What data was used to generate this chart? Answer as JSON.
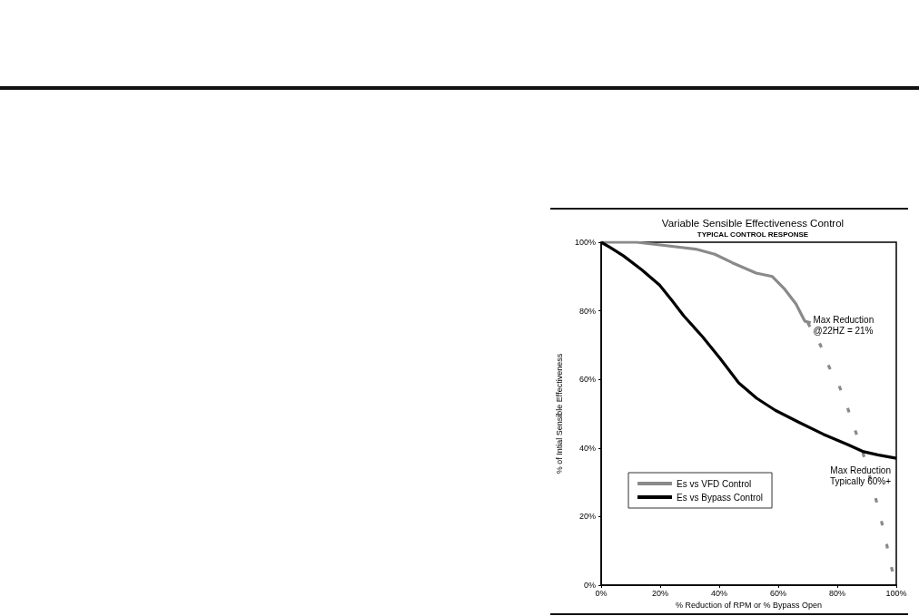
{
  "chart_data": {
    "type": "line",
    "title": "Variable Sensible Effectiveness Control",
    "subtitle": "TYPICAL CONTROL RESPONSE",
    "xlabel": "% Reduction of RPM or % Bypass Open",
    "ylabel": "% of Intial Sensible Effectiveness",
    "series": [
      {
        "name": "Es vs VFD Control",
        "color": "#8a8a8a",
        "x": [
          0,
          12,
          22,
          32,
          38.5,
          44.5,
          52.5,
          58,
          62,
          66,
          69,
          71
        ],
        "values": [
          100,
          100,
          99,
          98,
          96.5,
          94,
          91,
          90,
          86.5,
          82,
          77,
          76.5
        ]
      },
      {
        "color": "#8a8a8a",
        "line_style": "dotted",
        "x": [
          70,
          74.3,
          77.3,
          80,
          83,
          85.7,
          88.4,
          92.2,
          94.3,
          96.3,
          97.8,
          100
        ],
        "values": [
          76.5,
          70,
          63.5,
          59.5,
          53,
          46,
          39.5,
          28,
          21,
          14,
          7,
          0
        ]
      },
      {
        "name": "Es vs Bypass Control",
        "color": "#000000",
        "x": [
          0,
          3,
          7.6,
          13.7,
          19.8,
          24,
          28,
          34.3,
          40.4,
          46.6,
          52.7,
          59,
          67,
          75.3,
          83.5,
          88.6,
          93.7,
          100
        ],
        "values": [
          100,
          98.5,
          96,
          92,
          87.5,
          83,
          78.5,
          72.5,
          66,
          59,
          54.5,
          51,
          47.5,
          44,
          41,
          39,
          38,
          37
        ]
      }
    ],
    "xlim": [
      0,
      100
    ],
    "ylim": [
      0,
      100
    ],
    "xticks": [
      {
        "value": 0,
        "label": "0%"
      },
      {
        "value": 20,
        "label": "20%"
      },
      {
        "value": 40,
        "label": "40%"
      },
      {
        "value": 60,
        "label": "60%"
      },
      {
        "value": 80,
        "label": "80%"
      },
      {
        "value": 100,
        "label": "100%"
      }
    ],
    "yticks": [
      {
        "value": 0,
        "label": "0%"
      },
      {
        "value": 20,
        "label": "20%"
      },
      {
        "value": 40,
        "label": "40%"
      },
      {
        "value": 60,
        "label": "60%"
      },
      {
        "value": 80,
        "label": "80%"
      },
      {
        "value": 100,
        "label": "100%"
      }
    ],
    "legend": "bottom left",
    "marker": "none",
    "line_style": "solid",
    "annotations": [
      {
        "text": "Max Reduction\n@22HZ = 21%",
        "x": 70,
        "y": 76.5
      },
      {
        "text": "Max Reduction\nTypically 60%+",
        "x": 100,
        "y": 37
      }
    ]
  }
}
